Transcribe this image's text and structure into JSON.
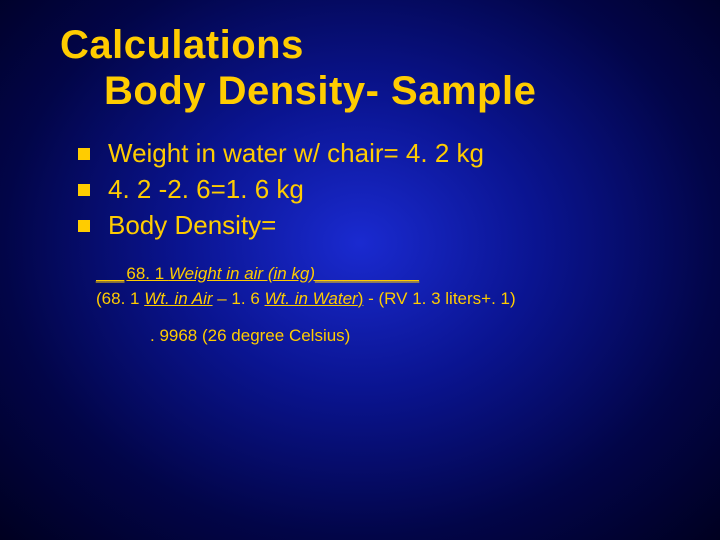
{
  "title": {
    "line1": "Calculations",
    "line2": "Body Density- Sample"
  },
  "bullets": [
    "Weight in water w/ chair= 4. 2 kg",
    "4. 2 -2. 6=1. 6 kg",
    "Body Density="
  ],
  "formula": {
    "pad": "___",
    "num_value": "68. 1 ",
    "num_label": "Weight in air (in kg)",
    "num_trail": "___________",
    "denom_open": "(68. 1 ",
    "denom_a": "Wt. in Air",
    "denom_mid": " – 1. 6 ",
    "denom_b": "Wt. in Water",
    "denom_close": ")",
    "rv": "  - (RV 1. 3 liters+. 1)"
  },
  "note": ". 9968 (26 degree Celsius)",
  "colors": {
    "text": "#ffcc00",
    "bg_center": "#1a2ad0",
    "bg_mid": "#0a1490",
    "bg_outer": "#020548",
    "bg_edge": "#000020"
  },
  "fontsizes": {
    "title": 40,
    "bullet": 26,
    "formula": 17,
    "note": 17
  }
}
